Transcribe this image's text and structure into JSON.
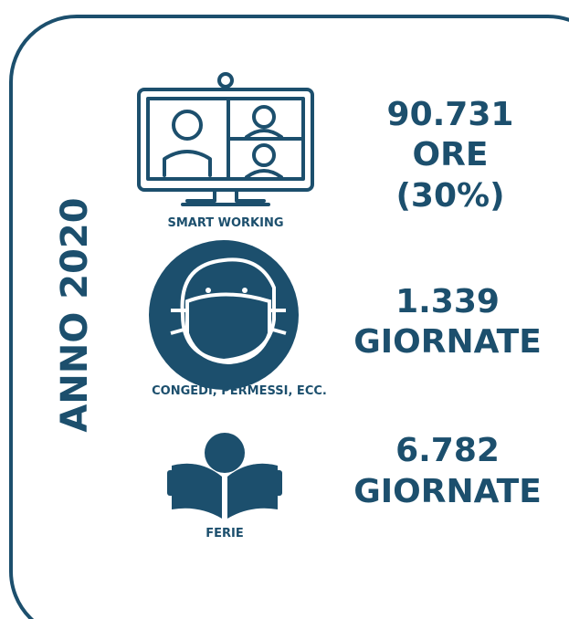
{
  "title": "ANNO 2020",
  "items": [
    {
      "label": "SMART WORKING",
      "value_lines": [
        "90.731",
        "ORE",
        "(30%)"
      ]
    },
    {
      "label": "CONGEDI, PERMESSI, ECC.",
      "value_lines": [
        "1.339",
        "GIORNATE"
      ]
    },
    {
      "label": "FERIE",
      "value_lines": [
        "6.782",
        "GIORNATE"
      ]
    }
  ]
}
